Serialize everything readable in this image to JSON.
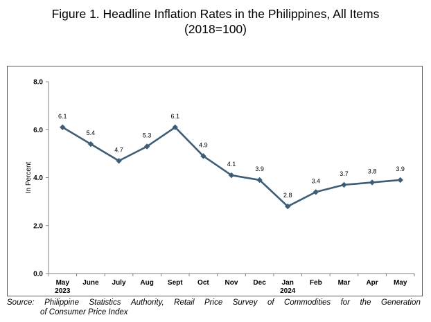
{
  "title_line1": "Figure 1. Headline Inflation Rates in the Philippines, All Items",
  "title_line2": "(2018=100)",
  "source": {
    "words_line1": [
      "Source:",
      "Philippine",
      "Statistics",
      "Authority,",
      "Retail",
      "Price",
      "Survey",
      "of",
      "Commodities",
      "for",
      "the",
      "Generation"
    ],
    "line2": "of Consumer Price Index"
  },
  "chart_data": {
    "type": "line",
    "title": "Figure 1. Headline Inflation Rates in the Philippines, All Items (2018=100)",
    "xlabel": "",
    "ylabel": "In Percent",
    "categories": [
      "May",
      "June",
      "July",
      "Aug",
      "Sept",
      "Oct",
      "Nov",
      "Dec",
      "Jan",
      "Feb",
      "Mar",
      "Apr",
      "May"
    ],
    "category_years": [
      "2023",
      "",
      "",
      "",
      "",
      "",
      "",
      "",
      "2024",
      "",
      "",
      "",
      ""
    ],
    "series": [
      {
        "values": [
          6.1,
          5.4,
          4.7,
          5.3,
          6.1,
          4.9,
          4.1,
          3.9,
          2.8,
          3.4,
          3.7,
          3.8,
          3.9
        ]
      }
    ],
    "data_labels": [
      "6.1",
      "5.4",
      "4.7",
      "5.3",
      "6.1",
      "4.9",
      "4.1",
      "3.9",
      "2.8",
      "3.4",
      "3.7",
      "3.8",
      "3.9"
    ],
    "ylim": [
      0,
      8
    ],
    "yticks": [
      "0.0",
      "2.0",
      "4.0",
      "6.0",
      "8.0"
    ],
    "grid": false,
    "line_color": "#3e5d75",
    "marker": "diamond"
  }
}
